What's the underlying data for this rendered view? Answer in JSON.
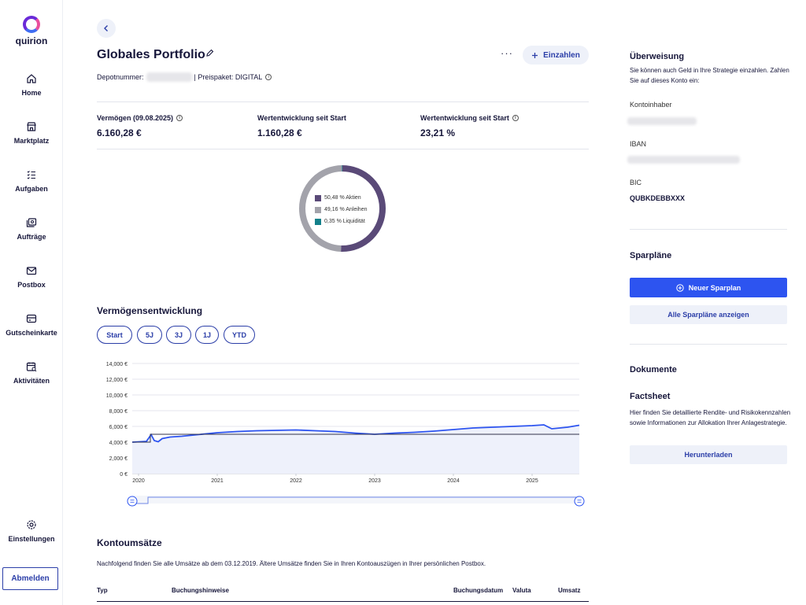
{
  "app": {
    "logo_text": "quirion"
  },
  "sidebar": {
    "items": [
      {
        "label": "Home",
        "icon": "home-icon"
      },
      {
        "label": "Marktplatz",
        "icon": "store-icon"
      },
      {
        "label": "Aufgaben",
        "icon": "tasks-icon"
      },
      {
        "label": "Aufträge",
        "icon": "orders-icon"
      },
      {
        "label": "Postbox",
        "icon": "mail-icon"
      },
      {
        "label": "Gutscheinkarte",
        "icon": "card-icon"
      },
      {
        "label": "Aktivitäten",
        "icon": "calendar-icon"
      }
    ],
    "settings_label": "Einstellungen",
    "logout_label": "Abmelden"
  },
  "header": {
    "title": "Globales Portfolio",
    "more_label": "···",
    "deposit_label": "Einzahlen",
    "depot_label": "Depotnummer:",
    "package_label": "| Preispaket: DIGITAL"
  },
  "stats": [
    {
      "label": "Vermögen (09.08.2025)",
      "value": "6.160,28 €",
      "info": true
    },
    {
      "label": "Wertentwicklung seit Start",
      "value": "1.160,28 €",
      "info": false
    },
    {
      "label": "Wertentwicklung seit Start",
      "value": "23,21 %",
      "info": true
    }
  ],
  "allocation": [
    {
      "label": "50,48 % Aktien",
      "value": 50.48,
      "color": "#5a4a78"
    },
    {
      "label": "49,16 % Anleihen",
      "value": 49.16,
      "color": "#a3a3ab"
    },
    {
      "label": "0,35 % Liquidität",
      "value": 0.35,
      "color": "#13808a"
    }
  ],
  "wealth": {
    "title": "Vermögensentwicklung",
    "ranges": [
      "Start",
      "5J",
      "3J",
      "1J",
      "YTD"
    ]
  },
  "chart_data": {
    "type": "area",
    "title": "",
    "xlabel": "",
    "ylabel": "",
    "y_ticks": [
      "0 €",
      "2,000 €",
      "4,000 €",
      "6,000 €",
      "8,000 €",
      "10,000 €",
      "12,000 €",
      "14,000 €"
    ],
    "x_ticks": [
      "2020",
      "2021",
      "2022",
      "2023",
      "2024",
      "2025"
    ],
    "x_tick_values": [
      2020,
      2021,
      2022,
      2023,
      2024,
      2025
    ],
    "xlim": [
      2019.92,
      2025.6
    ],
    "ylim": [
      0,
      14000
    ],
    "grid": true,
    "series": [
      {
        "name": "",
        "color": "#2d54f0",
        "x": [
          2019.92,
          2020.1,
          2020.16,
          2020.2,
          2020.25,
          2020.3,
          2020.4,
          2020.55,
          2020.75,
          2021.0,
          2021.25,
          2021.5,
          2021.75,
          2022.0,
          2022.25,
          2022.5,
          2022.75,
          2023.0,
          2023.25,
          2023.5,
          2023.75,
          2024.0,
          2024.25,
          2024.5,
          2024.75,
          2025.0,
          2025.15,
          2025.25,
          2025.35,
          2025.45,
          2025.6
        ],
        "y": [
          4000,
          4100,
          4950,
          4200,
          4050,
          4450,
          4650,
          4750,
          4950,
          5200,
          5350,
          5450,
          5500,
          5550,
          5450,
          5350,
          5150,
          5000,
          5150,
          5250,
          5400,
          5600,
          5800,
          5900,
          6000,
          6100,
          6200,
          5700,
          5800,
          5900,
          6150
        ]
      },
      {
        "name": "",
        "color": "#33334a",
        "x": [
          2019.92,
          2020.15,
          2020.15,
          2025.6
        ],
        "y": [
          4000,
          4000,
          5000,
          5000
        ]
      }
    ]
  },
  "transactions": {
    "title": "Kontoumsätze",
    "description": "Nachfolgend finden Sie alle Umsätze ab dem 03.12.2019. Ältere Umsätze finden Sie in Ihren Kontoauszügen in Ihrer persönlichen Postbox.",
    "columns": [
      "Typ",
      "Buchungshinweise",
      "Buchungsdatum",
      "Valuta",
      "Umsatz"
    ]
  },
  "transfer": {
    "title": "Überweisung",
    "description": "Sie können auch Geld in Ihre Strategie einzahlen. Zahlen Sie auf dieses Konto ein:",
    "holder_label": "Kontoinhaber",
    "iban_label": "IBAN",
    "bic_label": "BIC",
    "bic_value": "QUBKDEBBXXX"
  },
  "savings": {
    "title": "Sparpläne",
    "new_label": "Neuer Sparplan",
    "all_label": "Alle Sparpläne anzeigen"
  },
  "documents": {
    "title": "Dokumente",
    "factsheet_title": "Factsheet",
    "factsheet_text": "Hier finden Sie detaillierte Rendite- und Risikokennzahlen sowie Informationen zur Allokation Ihrer Anlagestrategie.",
    "download_label": "Herunterladen"
  }
}
